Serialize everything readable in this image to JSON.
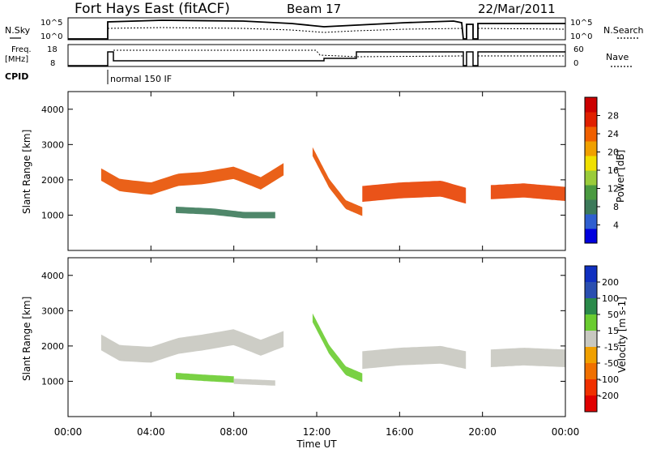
{
  "header": {
    "title": "Fort Hays East (fitACF)",
    "beam": "Beam 17",
    "date": "22/Mar/2011"
  },
  "top_panels": {
    "nsky": {
      "label": "N.Sky",
      "y_ticks": [
        "10^5",
        "10^0"
      ],
      "right_label": "N.Search",
      "right_ticks": [
        "10^5",
        "10^0"
      ]
    },
    "freq": {
      "label_line1": "Freq.",
      "label_line2": "[MHz]",
      "y_ticks": [
        "18",
        "8"
      ],
      "right_label": "Nave",
      "right_ticks": [
        "60",
        "0"
      ]
    },
    "cpid": {
      "label": "CPID",
      "mode": "normal 150 IF"
    }
  },
  "chart_data": [
    {
      "type": "heatmap",
      "name": "power",
      "ylabel": "Slant Range [km]",
      "y_ticks": [
        "1000",
        "2000",
        "3000",
        "4000"
      ],
      "ylim": [
        0,
        4500
      ],
      "colorbar": {
        "label": "Power [dB]",
        "ticks": [
          "4",
          "8",
          "12",
          "16",
          "20",
          "24",
          "28"
        ],
        "colors": [
          "#0000dd",
          "#2f5fd0",
          "#3c7a5a",
          "#4a9a40",
          "#9acc3a",
          "#f0e000",
          "#f0a000",
          "#f06000",
          "#e02000",
          "#cc0000"
        ]
      },
      "bands": [
        {
          "x0": 1.6,
          "x1": 10.4,
          "center": [
            [
              1.6,
              2150
            ],
            [
              2.5,
              1850
            ],
            [
              4.0,
              1750
            ],
            [
              5.3,
              2000
            ],
            [
              6.5,
              2050
            ],
            [
              8.0,
              2200
            ],
            [
              9.3,
              1900
            ],
            [
              10.4,
              2300
            ]
          ],
          "width": 350,
          "color": "#e85000"
        },
        {
          "x0": 5.2,
          "x1": 10.0,
          "center": [
            [
              5.2,
              1150
            ],
            [
              7.0,
              1100
            ],
            [
              8.5,
              1000
            ],
            [
              10.0,
              1000
            ]
          ],
          "width": 180,
          "color": "#3c7a5a"
        },
        {
          "x0": 11.8,
          "x1": 14.2,
          "center": [
            [
              11.8,
              2800
            ],
            [
              12.6,
              1900
            ],
            [
              13.4,
              1300
            ],
            [
              14.2,
              1100
            ]
          ],
          "width": 250,
          "color": "#e85000"
        },
        {
          "x0": 14.2,
          "x1": 19.2,
          "center": [
            [
              14.2,
              1600
            ],
            [
              16.0,
              1700
            ],
            [
              18.0,
              1750
            ],
            [
              19.2,
              1550
            ]
          ],
          "width": 450,
          "color": "#e84000"
        },
        {
          "x0": 20.4,
          "x1": 24.0,
          "center": [
            [
              20.4,
              1650
            ],
            [
              22.0,
              1700
            ],
            [
              24.0,
              1600
            ]
          ],
          "width": 400,
          "color": "#e84000"
        }
      ]
    },
    {
      "type": "heatmap",
      "name": "velocity",
      "xlabel": "Time UT",
      "ylabel": "Slant Range [km]",
      "x_ticks": [
        "00:00",
        "04:00",
        "08:00",
        "12:00",
        "16:00",
        "20:00",
        "00:00"
      ],
      "xlim": [
        0,
        24
      ],
      "y_ticks": [
        "1000",
        "2000",
        "3000",
        "4000"
      ],
      "ylim": [
        0,
        4500
      ],
      "colorbar": {
        "label": "Velocity [m s-1]",
        "ticks": [
          "200",
          "100",
          "50",
          "15",
          "-15",
          "-50",
          "-100",
          "-200"
        ],
        "colors": [
          "#1030c0",
          "#2a4fb0",
          "#2a8a4a",
          "#6acc30",
          "#c8c8c0",
          "#f0a000",
          "#f07000",
          "#f03000",
          "#e00000"
        ]
      },
      "bands": [
        {
          "x0": 1.6,
          "x1": 10.4,
          "center": [
            [
              1.6,
              2100
            ],
            [
              2.5,
              1800
            ],
            [
              4.0,
              1750
            ],
            [
              5.3,
              2000
            ],
            [
              6.5,
              2100
            ],
            [
              8.0,
              2250
            ],
            [
              9.3,
              1950
            ],
            [
              10.4,
              2200
            ]
          ],
          "width": 450,
          "color": "#c8c8c0"
        },
        {
          "x0": 5.2,
          "x1": 8.0,
          "center": [
            [
              5.2,
              1150
            ],
            [
              6.5,
              1100
            ],
            [
              8.0,
              1050
            ]
          ],
          "width": 180,
          "color": "#6acc30"
        },
        {
          "x0": 8.0,
          "x1": 10.0,
          "center": [
            [
              8.0,
              1000
            ],
            [
              10.0,
              950
            ]
          ],
          "width": 150,
          "color": "#c8c8c0"
        },
        {
          "x0": 11.8,
          "x1": 14.2,
          "center": [
            [
              11.8,
              2800
            ],
            [
              12.6,
              1900
            ],
            [
              13.4,
              1300
            ],
            [
              14.2,
              1100
            ]
          ],
          "width": 250,
          "color": "#6acc30"
        },
        {
          "x0": 14.2,
          "x1": 19.2,
          "center": [
            [
              14.2,
              1600
            ],
            [
              16.0,
              1700
            ],
            [
              18.0,
              1750
            ],
            [
              19.2,
              1600
            ]
          ],
          "width": 500,
          "color": "#c8c8c0"
        },
        {
          "x0": 20.4,
          "x1": 24.0,
          "center": [
            [
              20.4,
              1650
            ],
            [
              22.0,
              1700
            ],
            [
              24.0,
              1650
            ]
          ],
          "width": 500,
          "color": "#c8c8c0"
        }
      ]
    }
  ]
}
